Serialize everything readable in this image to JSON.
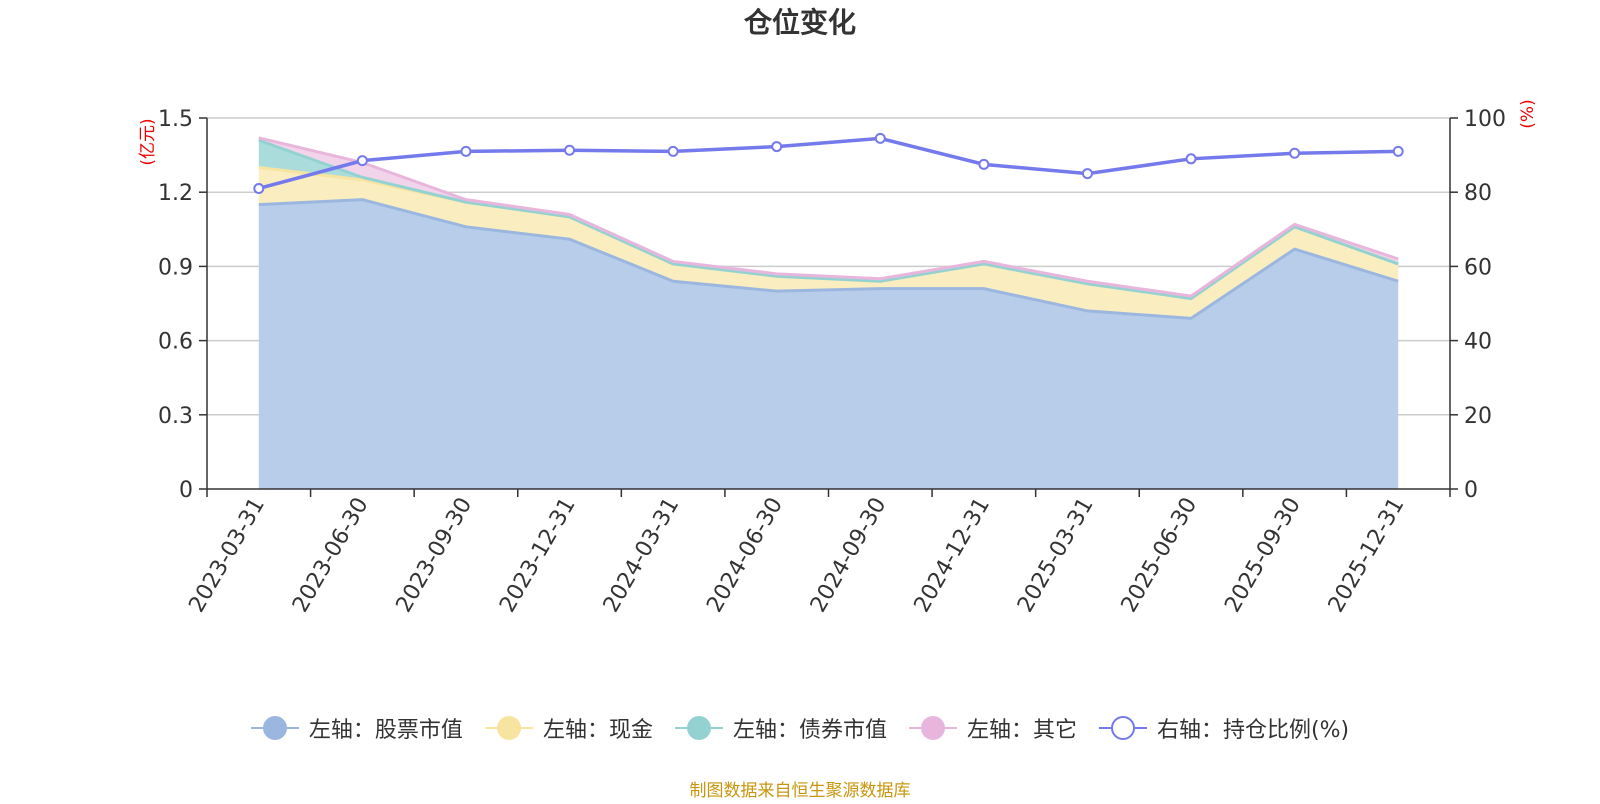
{
  "chart_data": {
    "type": "area",
    "title": "仓位变化",
    "x": [
      "2023-03-31",
      "2023-06-30",
      "2023-09-30",
      "2023-12-31",
      "2024-03-31",
      "2024-06-30",
      "2024-09-30",
      "2024-12-31",
      "2025-03-31",
      "2025-06-30",
      "2025-09-30",
      "2025-12-31"
    ],
    "left_axis": {
      "label": "(亿元)",
      "ylim": [
        0,
        1.5
      ],
      "ticks": [
        0,
        0.3,
        0.6,
        0.9,
        1.2,
        1.5
      ],
      "tick_labels": [
        "0",
        "0.3",
        "0.6",
        "0.9",
        "1.2",
        "1.5"
      ]
    },
    "right_axis": {
      "label": "(%)",
      "ylim": [
        0,
        100
      ],
      "ticks": [
        0,
        20,
        40,
        60,
        80,
        100
      ],
      "tick_labels": [
        "0",
        "20",
        "40",
        "60",
        "80",
        "100"
      ]
    },
    "grid": true,
    "legend_position": "bottom",
    "series": [
      {
        "name": "左轴：股票市值",
        "axis": "left",
        "kind": "stacked-area",
        "color": "#9bb7e0",
        "fill": "#b8cdea",
        "values": [
          1.15,
          1.17,
          1.06,
          1.01,
          0.84,
          0.8,
          0.81,
          0.81,
          0.72,
          0.69,
          0.97,
          0.84
        ]
      },
      {
        "name": "左轴：现金",
        "axis": "left",
        "kind": "stacked-area",
        "color": "#f6e4a0",
        "fill": "#faedc0",
        "values": [
          0.15,
          0.08,
          0.1,
          0.09,
          0.07,
          0.06,
          0.03,
          0.1,
          0.11,
          0.08,
          0.09,
          0.07
        ]
      },
      {
        "name": "左轴：债券市值",
        "axis": "left",
        "kind": "stacked-area",
        "color": "#94d2d2",
        "fill": "#abdcdc",
        "values": [
          0.11,
          0.01,
          0,
          0,
          0,
          0,
          0,
          0,
          0,
          0,
          0,
          0
        ]
      },
      {
        "name": "左轴：其它",
        "axis": "left",
        "kind": "stacked-area",
        "color": "#e8b6dc",
        "fill": "#f2d4ea",
        "values": [
          0.01,
          0.06,
          0.01,
          0.01,
          0.01,
          0.01,
          0.01,
          0.01,
          0.01,
          0.01,
          0.01,
          0.02
        ]
      },
      {
        "name": "右轴：持仓比例(%)",
        "axis": "right",
        "kind": "line",
        "color": "#7479ec",
        "values": [
          81,
          88.5,
          91,
          91.3,
          91,
          92.3,
          94.5,
          87.5,
          85,
          89,
          90.5,
          91
        ]
      }
    ]
  },
  "source_note": "制图数据来自恒生聚源数据库"
}
